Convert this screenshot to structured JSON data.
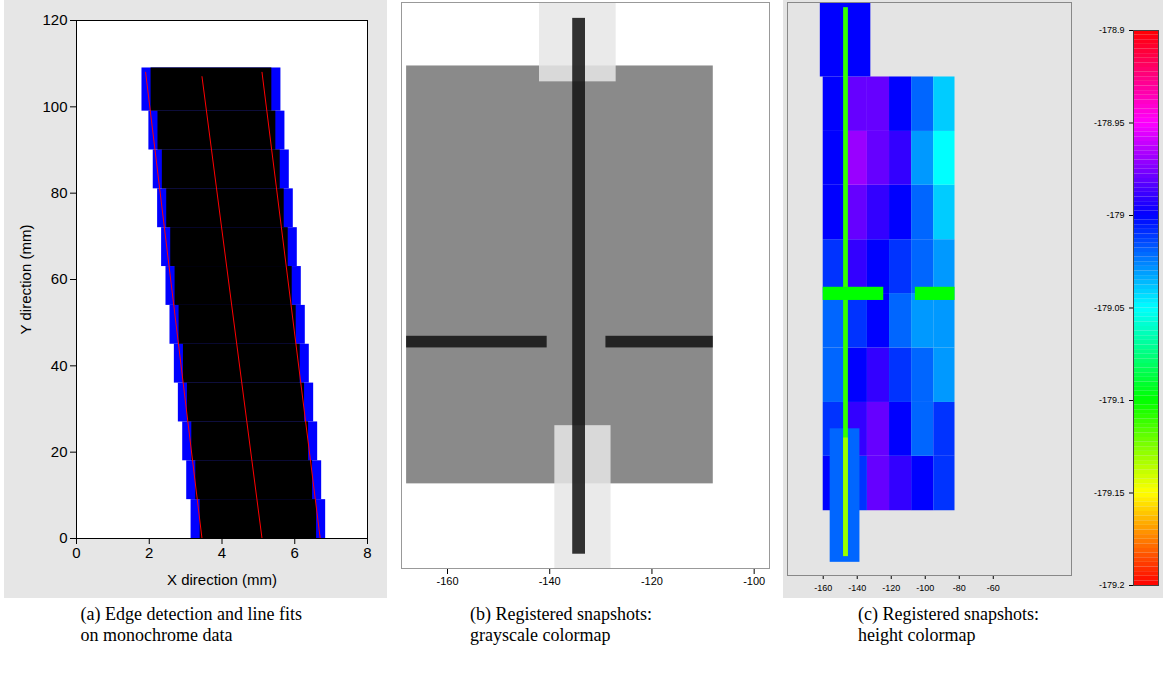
{
  "chart_data": [
    {
      "type": "line",
      "caption": "(a) Edge detection and line fits on monochrome data",
      "xlabel": "X direction (mm)",
      "ylabel": "Y direction (mm)",
      "xlim": [
        0,
        8
      ],
      "xticks": [
        0,
        2,
        4,
        6,
        8
      ],
      "ylim": [
        0,
        120
      ],
      "yticks": [
        0,
        20,
        40,
        60,
        80,
        100,
        120
      ],
      "grid": false,
      "bands": {
        "y1": [
          0,
          9,
          18,
          27,
          36,
          45,
          54,
          63,
          72,
          81,
          90,
          99
        ],
        "y2": [
          9,
          18,
          27,
          36,
          45,
          54,
          63,
          72,
          81,
          90,
          99,
          109
        ]
      },
      "edge": {
        "color": "#0000ff",
        "x1": [
          3.15,
          3.03,
          2.92,
          2.8,
          2.69,
          2.57,
          2.46,
          2.34,
          2.23,
          2.11,
          1.99,
          1.8
        ],
        "x2": [
          6.85,
          6.74,
          6.63,
          6.52,
          6.4,
          6.29,
          6.18,
          6.07,
          5.96,
          5.85,
          5.73,
          5.62
        ]
      },
      "fill": {
        "color": "#000000",
        "x1": [
          3.4,
          3.28,
          3.17,
          3.05,
          2.94,
          2.82,
          2.71,
          2.59,
          2.48,
          2.36,
          2.24,
          2.05
        ],
        "x2": [
          6.6,
          6.49,
          6.38,
          6.27,
          6.15,
          6.04,
          5.93,
          5.82,
          5.71,
          5.6,
          5.48,
          5.37
        ]
      },
      "lines": [
        {
          "color": "#ff0000",
          "x": [
            1.9,
            3.45
          ],
          "y": [
            108,
            0
          ]
        },
        {
          "color": "#ff0000",
          "x": [
            3.45,
            5.1
          ],
          "y": [
            107,
            0
          ]
        },
        {
          "color": "#ff0000",
          "x": [
            5.1,
            6.7
          ],
          "y": [
            108,
            0
          ]
        }
      ]
    },
    {
      "type": "image",
      "caption": "(b) Registered snapshots: grayscale colormap",
      "tick_labels": "x",
      "xlim": [
        -169,
        -97
      ],
      "xticks": [
        -160,
        -140,
        -120,
        -100
      ],
      "ylim": [
        0,
        107
      ],
      "plate": {
        "color": "#8a8a8a",
        "x1": -168,
        "x2": -108,
        "y1": 16,
        "y2": 95
      },
      "shapes": [
        {
          "color": "#e6e6e6",
          "x1": -142,
          "x2": -127,
          "y1": 92,
          "y2": 107
        },
        {
          "color": "#e6e6e6",
          "x1": -139,
          "x2": -128,
          "y1": 0,
          "y2": 27
        },
        {
          "color": "#111111",
          "x1": -135.5,
          "x2": -133,
          "y1": 2.7,
          "y2": 104
        },
        {
          "color": "#111111",
          "x1": -168,
          "x2": -140.5,
          "y1": 41.7,
          "y2": 43.9
        },
        {
          "color": "#111111",
          "x1": -129,
          "x2": -108,
          "y1": 41.7,
          "y2": 43.9
        }
      ]
    },
    {
      "type": "heatmap",
      "caption": "(c) Registered snapshots: height colormap",
      "tick_labels": "x",
      "xlim": [
        -181,
        -14
      ],
      "xticks": [
        -160,
        -140,
        -120,
        -100,
        -80,
        -60
      ],
      "ylim": [
        0,
        100
      ],
      "zlim": [
        -179.2,
        -178.9
      ],
      "zticks": [
        -178.9,
        -178.95,
        -179,
        -179.05,
        -179.1,
        -179.15,
        -179.2
      ],
      "cells": {
        "x": [
          -160,
          -147,
          -134,
          -121,
          -108,
          -95,
          -82.5
        ],
        "y": [
          11.3,
          20.8,
          30.2,
          39.7,
          49.2,
          58.6,
          68.1,
          77.5,
          87
        ],
        "values": [
          [
            -179.0,
            -179.01,
            -178.98,
            -178.99,
            -179.0,
            -179.01
          ],
          [
            -179.01,
            -178.99,
            -178.98,
            -179.0,
            -179.02,
            -179.01
          ],
          [
            -179.02,
            -179.0,
            -178.99,
            -179.01,
            -179.02,
            -179.03
          ],
          [
            -179.02,
            -179.01,
            -179.0,
            -179.02,
            -179.03,
            -179.03
          ],
          [
            -179.01,
            -178.99,
            -179.0,
            -179.01,
            -179.02,
            -179.03
          ],
          [
            -179.0,
            -178.98,
            -178.99,
            -179.0,
            -179.02,
            -179.04
          ],
          [
            -179.0,
            -178.97,
            -178.98,
            -178.99,
            -179.03,
            -179.05
          ],
          [
            -179.0,
            -178.98,
            -178.98,
            -179.0,
            -179.02,
            -179.04
          ]
        ]
      },
      "shapes": [
        {
          "value": -179.0,
          "x1": -161.7,
          "x2": -132,
          "y1": 87,
          "y2": 100
        },
        {
          "value": -179.02,
          "x1": -155.9,
          "x2": -138.4,
          "y1": 2.3,
          "y2": 25.6
        },
        {
          "value": -179.11,
          "x1": -148,
          "x2": -145.2,
          "y1": 3.3,
          "y2": 99.1
        },
        {
          "value": -179.13,
          "x1": -148,
          "x2": -145.2,
          "y1": 3.3,
          "y2": 24
        },
        {
          "value": -179.1,
          "x1": -160,
          "x2": -124.4,
          "y1": 48,
          "y2": 50.3
        },
        {
          "value": -179.1,
          "x1": -105.8,
          "x2": -82.5,
          "y1": 48,
          "y2": 50.3
        }
      ]
    }
  ]
}
